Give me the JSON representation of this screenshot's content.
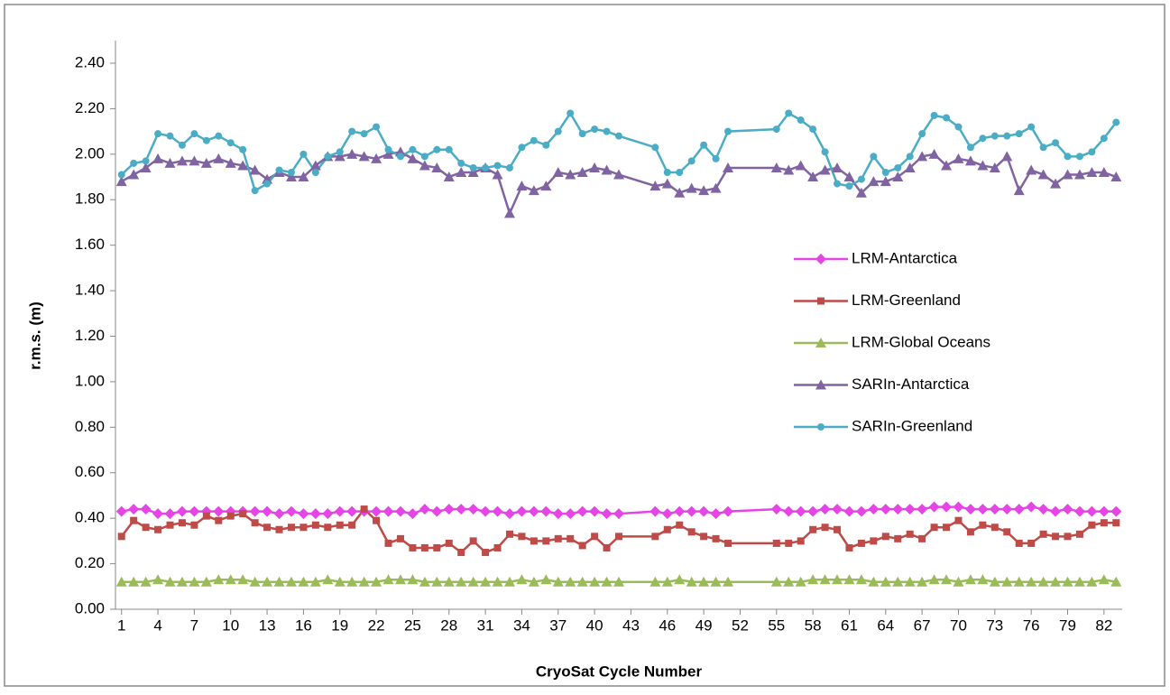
{
  "chart_data": {
    "type": "line",
    "x_label": "CryoSat Cycle Number",
    "y_label": "r.m.s. (m)",
    "xlim": [
      0.5,
      83.5
    ],
    "xticks": [
      1,
      4,
      7,
      10,
      13,
      16,
      19,
      22,
      25,
      28,
      31,
      34,
      37,
      40,
      43,
      46,
      49,
      52,
      55,
      58,
      61,
      64,
      67,
      70,
      73,
      76,
      79,
      82
    ],
    "ylim": [
      0,
      2.4
    ],
    "yticks": [
      {
        "value": 0,
        "label": "0.00"
      },
      {
        "value": 0.2,
        "label": "0.20"
      },
      {
        "value": 0.4,
        "label": "0.40"
      },
      {
        "value": 0.6,
        "label": "0.60"
      },
      {
        "value": 0.8,
        "label": "0.80"
      },
      {
        "value": 1,
        "label": "1.00"
      },
      {
        "value": 1.2,
        "label": "1.20"
      },
      {
        "value": 1.4,
        "label": "1.40"
      },
      {
        "value": 1.6,
        "label": "1.60"
      },
      {
        "value": 1.8,
        "label": "1.80"
      },
      {
        "value": 2,
        "label": "2.00"
      },
      {
        "value": 2.2,
        "label": "2.20"
      },
      {
        "value": 2.4,
        "label": "2.40"
      }
    ],
    "legend": "right",
    "x": [
      1,
      2,
      3,
      4,
      5,
      6,
      7,
      8,
      9,
      10,
      11,
      12,
      13,
      14,
      15,
      16,
      17,
      18,
      19,
      20,
      21,
      22,
      23,
      24,
      25,
      26,
      27,
      28,
      29,
      30,
      31,
      32,
      33,
      34,
      35,
      36,
      37,
      38,
      39,
      40,
      41,
      42,
      45,
      46,
      47,
      48,
      49,
      50,
      51,
      55,
      56,
      57,
      58,
      59,
      60,
      61,
      62,
      63,
      64,
      65,
      66,
      67,
      68,
      69,
      70,
      71,
      72,
      73,
      74,
      75,
      76,
      77,
      78,
      79,
      80,
      81,
      82,
      83
    ],
    "series": [
      {
        "name": "LRM-Antarctica",
        "color": "#e645e6",
        "marker": "diamond",
        "values": [
          0.43,
          0.44,
          0.44,
          0.42,
          0.42,
          0.43,
          0.43,
          0.43,
          0.43,
          0.43,
          0.43,
          0.43,
          0.43,
          0.42,
          0.43,
          0.42,
          0.42,
          0.42,
          0.43,
          0.43,
          0.43,
          0.43,
          0.43,
          0.43,
          0.42,
          0.44,
          0.43,
          0.44,
          0.44,
          0.44,
          0.43,
          0.43,
          0.42,
          0.43,
          0.43,
          0.43,
          0.42,
          0.42,
          0.43,
          0.43,
          0.42,
          0.42,
          0.43,
          0.42,
          0.43,
          0.43,
          0.43,
          0.42,
          0.43,
          0.44,
          0.43,
          0.43,
          0.43,
          0.44,
          0.44,
          0.43,
          0.43,
          0.44,
          0.44,
          0.44,
          0.44,
          0.44,
          0.45,
          0.45,
          0.45,
          0.44,
          0.44,
          0.44,
          0.44,
          0.44,
          0.45,
          0.44,
          0.43,
          0.44,
          0.43,
          0.43,
          0.43,
          0.43
        ]
      },
      {
        "name": "LRM-Greenland",
        "color": "#be4b48",
        "marker": "square",
        "values": [
          0.32,
          0.39,
          0.36,
          0.35,
          0.37,
          0.38,
          0.37,
          0.41,
          0.39,
          0.41,
          0.42,
          0.38,
          0.36,
          0.35,
          0.36,
          0.36,
          0.37,
          0.36,
          0.37,
          0.37,
          0.44,
          0.39,
          0.29,
          0.31,
          0.27,
          0.27,
          0.27,
          0.29,
          0.25,
          0.3,
          0.25,
          0.27,
          0.33,
          0.32,
          0.3,
          0.3,
          0.31,
          0.31,
          0.28,
          0.32,
          0.27,
          0.32,
          0.32,
          0.35,
          0.37,
          0.34,
          0.32,
          0.31,
          0.29,
          0.29,
          0.29,
          0.3,
          0.35,
          0.36,
          0.35,
          0.27,
          0.29,
          0.3,
          0.32,
          0.31,
          0.33,
          0.31,
          0.36,
          0.36,
          0.39,
          0.34,
          0.37,
          0.36,
          0.34,
          0.29,
          0.29,
          0.33,
          0.32,
          0.32,
          0.33,
          0.37,
          0.38,
          0.38
        ]
      },
      {
        "name": "LRM-Global Oceans",
        "color": "#9bbb59",
        "marker": "triangle",
        "values": [
          0.12,
          0.12,
          0.12,
          0.13,
          0.12,
          0.12,
          0.12,
          0.12,
          0.13,
          0.13,
          0.13,
          0.12,
          0.12,
          0.12,
          0.12,
          0.12,
          0.12,
          0.13,
          0.12,
          0.12,
          0.12,
          0.12,
          0.13,
          0.13,
          0.13,
          0.12,
          0.12,
          0.12,
          0.12,
          0.12,
          0.12,
          0.12,
          0.12,
          0.13,
          0.12,
          0.13,
          0.12,
          0.12,
          0.12,
          0.12,
          0.12,
          0.12,
          0.12,
          0.12,
          0.13,
          0.12,
          0.12,
          0.12,
          0.12,
          0.12,
          0.12,
          0.12,
          0.13,
          0.13,
          0.13,
          0.13,
          0.13,
          0.12,
          0.12,
          0.12,
          0.12,
          0.12,
          0.13,
          0.13,
          0.12,
          0.13,
          0.13,
          0.12,
          0.12,
          0.12,
          0.12,
          0.12,
          0.12,
          0.12,
          0.12,
          0.12,
          0.13,
          0.12
        ]
      },
      {
        "name": "SARIn-Antarctica",
        "color": "#8064a2",
        "marker": "triangle",
        "values": [
          1.88,
          1.91,
          1.94,
          1.98,
          1.96,
          1.97,
          1.97,
          1.96,
          1.98,
          1.96,
          1.95,
          1.93,
          1.89,
          1.92,
          1.9,
          1.9,
          1.95,
          1.99,
          1.99,
          2.0,
          1.99,
          1.98,
          2.0,
          2.01,
          1.98,
          1.95,
          1.94,
          1.9,
          1.92,
          1.92,
          1.94,
          1.91,
          1.74,
          1.86,
          1.84,
          1.86,
          1.92,
          1.91,
          1.92,
          1.94,
          1.93,
          1.91,
          1.86,
          1.87,
          1.83,
          1.85,
          1.84,
          1.85,
          1.94,
          1.94,
          1.93,
          1.95,
          1.9,
          1.93,
          1.94,
          1.9,
          1.83,
          1.88,
          1.88,
          1.9,
          1.94,
          1.99,
          2.0,
          1.95,
          1.98,
          1.97,
          1.95,
          1.94,
          1.99,
          1.84,
          1.93,
          1.91,
          1.87,
          1.91,
          1.91,
          1.92,
          1.92,
          1.9
        ]
      },
      {
        "name": "SARIn-Greenland",
        "color": "#4bacc6",
        "marker": "circle",
        "values": [
          1.91,
          1.96,
          1.97,
          2.09,
          2.08,
          2.04,
          2.09,
          2.06,
          2.08,
          2.05,
          2.02,
          1.84,
          1.87,
          1.93,
          1.92,
          2.0,
          1.92,
          1.99,
          2.01,
          2.1,
          2.09,
          2.12,
          2.02,
          1.99,
          2.02,
          1.99,
          2.02,
          2.02,
          1.96,
          1.94,
          1.94,
          1.95,
          1.94,
          2.03,
          2.06,
          2.04,
          2.1,
          2.18,
          2.09,
          2.11,
          2.1,
          2.08,
          2.03,
          1.92,
          1.92,
          1.97,
          2.04,
          1.98,
          2.1,
          2.11,
          2.18,
          2.15,
          2.11,
          2.01,
          1.87,
          1.86,
          1.89,
          1.99,
          1.92,
          1.94,
          1.99,
          2.09,
          2.17,
          2.16,
          2.12,
          2.03,
          2.07,
          2.08,
          2.08,
          2.09,
          2.12,
          2.03,
          2.05,
          1.99,
          1.99,
          2.01,
          2.07,
          2.14
        ]
      }
    ]
  }
}
